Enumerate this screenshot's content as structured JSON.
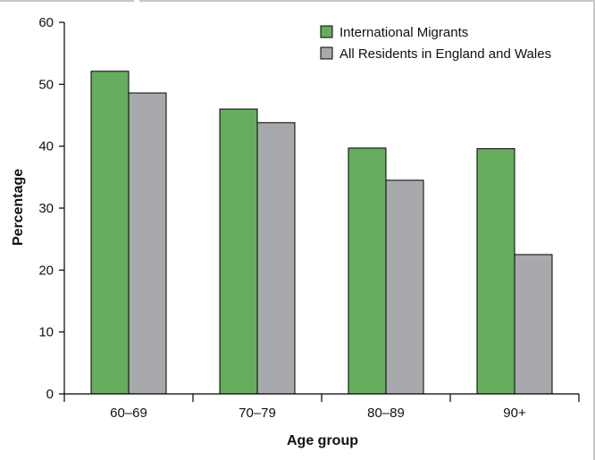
{
  "chart_data": {
    "type": "bar",
    "categories": [
      "60–69",
      "70–79",
      "80–89",
      "90+"
    ],
    "series": [
      {
        "name": "International Migrants",
        "values": [
          52.1,
          46.0,
          39.7,
          39.6
        ],
        "color": "#66ad5f"
      },
      {
        "name": "All Residents in England and Wales",
        "values": [
          48.6,
          43.8,
          34.5,
          22.5
        ],
        "color": "#a7a9ac"
      }
    ],
    "xlabel": "Age group",
    "ylabel": "Percentage",
    "ylim": [
      0,
      60
    ],
    "yticks": [
      0,
      10,
      20,
      30,
      40,
      50,
      60
    ],
    "grid": false,
    "legend_position": "top-right"
  }
}
